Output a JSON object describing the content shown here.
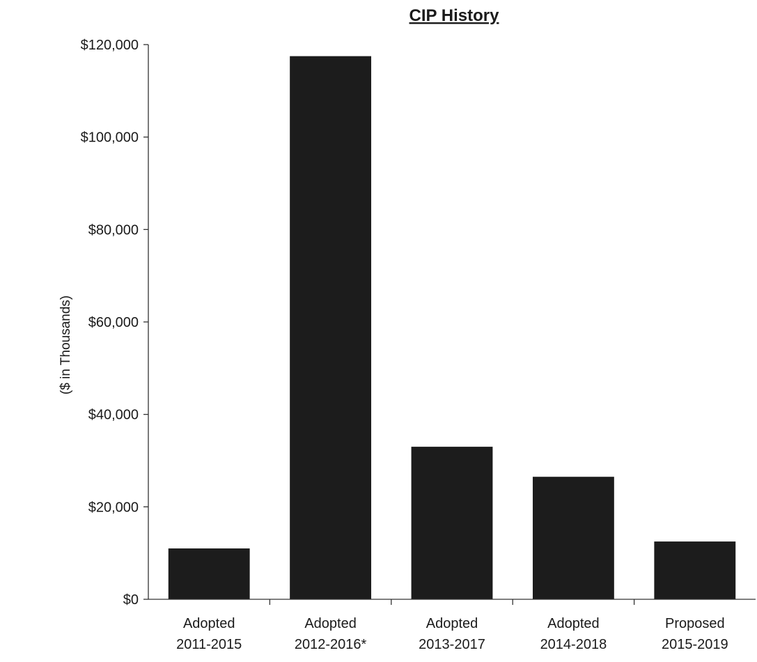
{
  "chart_data": {
    "type": "bar",
    "title": "CIP History",
    "ylabel": "($ in Thousands)",
    "xlabel": "",
    "ylim": [
      0,
      120000
    ],
    "yticks": [
      0,
      20000,
      40000,
      60000,
      80000,
      100000,
      120000
    ],
    "ytick_labels": [
      "$0",
      "$20,000",
      "$40,000",
      "$60,000",
      "$80,000",
      "$100,000",
      "$120,000"
    ],
    "categories": [
      [
        "Adopted",
        "2011-2015"
      ],
      [
        "Adopted",
        "2012-2016*"
      ],
      [
        "Adopted",
        "2013-2017"
      ],
      [
        "Adopted",
        "2014-2018"
      ],
      [
        "Proposed",
        "2015-2019"
      ]
    ],
    "values": [
      11000,
      117500,
      33000,
      26500,
      12500
    ],
    "grid": false,
    "legend": "none",
    "bar_color": "#1c1c1c"
  }
}
